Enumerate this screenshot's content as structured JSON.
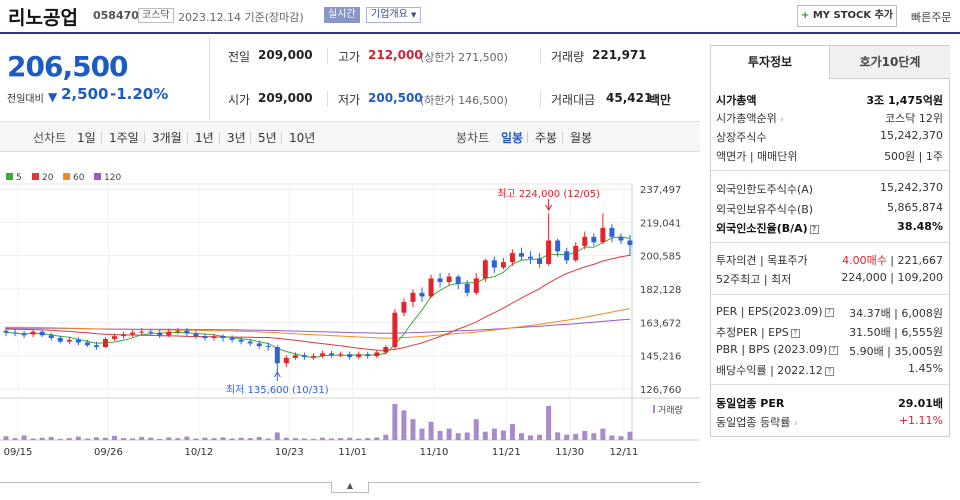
{
  "header": {
    "company": "리노공업",
    "code": "058470",
    "market": "코스닥",
    "date": "2023.12.14  기준(장마감)",
    "realtime": "실시간",
    "overview": "기업개요",
    "mystock": "MY STOCK 추가",
    "quick_order": "빠른주문"
  },
  "price": {
    "current": "206,500",
    "change_label": "전일대비",
    "change_icon": "down-triangle-icon",
    "change": "2,500",
    "change_pct": "-1.20%"
  },
  "summary": {
    "prev_close": {
      "label": "전일",
      "value": "209,000"
    },
    "high": {
      "label": "고가",
      "value": "212,000",
      "sub": "(상한가 271,500)"
    },
    "volume": {
      "label": "거래량",
      "value": "221,971"
    },
    "open": {
      "label": "시가",
      "value": "209,000"
    },
    "low": {
      "label": "저가",
      "value": "200,500",
      "sub": "(하한가 146,500)"
    },
    "amount": {
      "label": "거래대금",
      "value": "45,421",
      "unit": "백만"
    }
  },
  "period_bar": {
    "line_label": "선차트",
    "line_items": [
      "1일",
      "1주일",
      "3개월",
      "1년",
      "3년",
      "5년",
      "10년"
    ],
    "candle_label": "봉차트",
    "candle_items": [
      "일봉",
      "주봉",
      "월봉"
    ],
    "active": "일봉"
  },
  "legend": [
    {
      "label": "5",
      "color": "#3cab36"
    },
    {
      "label": "20",
      "color": "#e03a3a"
    },
    {
      "label": "60",
      "color": "#f08a24"
    },
    {
      "label": "120",
      "color": "#9a59c8"
    }
  ],
  "chart_data": {
    "type": "candlestick",
    "y_ticks": [
      "237,497",
      "219,041",
      "200,585",
      "182,128",
      "163,672",
      "145,216",
      "126,760"
    ],
    "x_labels": [
      "09/15",
      "09/26",
      "10/12",
      "10/23",
      "11/01",
      "11/10",
      "11/21",
      "11/30",
      "12/11"
    ],
    "ylim": [
      126760,
      237497
    ],
    "high_annotation": "최고 224,000 (12/05)",
    "low_annotation": "최저 135,600 (10/31)",
    "volume_label": "거래량",
    "candles": [
      [
        159000,
        158000,
        161000,
        156000
      ],
      [
        158000,
        157500,
        160000,
        156000
      ],
      [
        157500,
        156500,
        159000,
        155000
      ],
      [
        157000,
        158500,
        159500,
        155500
      ],
      [
        158500,
        156500,
        159500,
        155500
      ],
      [
        156500,
        155000,
        158000,
        153500
      ],
      [
        155000,
        153000,
        156500,
        152000
      ],
      [
        153000,
        154000,
        155500,
        151500
      ],
      [
        154000,
        152500,
        155500,
        151000
      ],
      [
        152500,
        151000,
        154000,
        150000
      ],
      [
        151000,
        150000,
        153000,
        148500
      ],
      [
        150000,
        154500,
        155500,
        149500
      ],
      [
        154500,
        156000,
        157500,
        153500
      ],
      [
        156000,
        157000,
        158500,
        154500
      ],
      [
        157000,
        158000,
        159500,
        155500
      ],
      [
        158000,
        158500,
        160500,
        156500
      ],
      [
        158500,
        158000,
        160000,
        156500
      ],
      [
        158000,
        156500,
        159500,
        155000
      ],
      [
        156500,
        158500,
        160000,
        155500
      ],
      [
        158500,
        159000,
        160500,
        157000
      ],
      [
        159000,
        157500,
        160500,
        156000
      ],
      [
        157500,
        156000,
        159000,
        154500
      ],
      [
        156000,
        155000,
        157500,
        153500
      ],
      [
        155000,
        156000,
        157500,
        153500
      ],
      [
        156000,
        155000,
        157000,
        153000
      ],
      [
        155000,
        154000,
        156500,
        152500
      ],
      [
        154000,
        153000,
        155500,
        151500
      ],
      [
        153000,
        152000,
        154500,
        150500
      ],
      [
        152000,
        150500,
        153500,
        149000
      ],
      [
        150500,
        150000,
        152500,
        148000
      ],
      [
        150000,
        141000,
        151000,
        135600
      ],
      [
        141000,
        144000,
        145500,
        139000
      ],
      [
        144000,
        145500,
        147000,
        143000
      ],
      [
        145500,
        144500,
        147000,
        143000
      ],
      [
        144500,
        145000,
        146500,
        143000
      ],
      [
        145000,
        146500,
        148000,
        144000
      ],
      [
        146500,
        145500,
        148000,
        144000
      ],
      [
        145500,
        146000,
        147500,
        144500
      ],
      [
        146000,
        144500,
        147500,
        143000
      ],
      [
        144500,
        146000,
        147500,
        143500
      ],
      [
        146000,
        145000,
        147500,
        143500
      ],
      [
        145000,
        147000,
        148500,
        144000
      ],
      [
        147000,
        150000,
        151000,
        146000
      ],
      [
        150000,
        169000,
        171000,
        149000
      ],
      [
        169000,
        175000,
        177000,
        167000
      ],
      [
        175000,
        180000,
        182000,
        172000
      ],
      [
        180000,
        178000,
        183000,
        175000
      ],
      [
        178000,
        188000,
        190000,
        177000
      ],
      [
        188000,
        186000,
        191000,
        183000
      ],
      [
        186000,
        189000,
        191000,
        184000
      ],
      [
        189000,
        185000,
        190000,
        182000
      ],
      [
        185000,
        180000,
        187000,
        178000
      ],
      [
        180000,
        188000,
        191000,
        179000
      ],
      [
        188000,
        198000,
        199000,
        186000
      ],
      [
        198000,
        194000,
        200000,
        191000
      ],
      [
        194000,
        197000,
        199500,
        193000
      ],
      [
        197000,
        202000,
        204000,
        195000
      ],
      [
        202000,
        200000,
        205000,
        198000
      ],
      [
        200000,
        199000,
        203000,
        196000
      ],
      [
        199000,
        196000,
        202000,
        194000
      ],
      [
        196000,
        209000,
        224000,
        195000
      ],
      [
        209000,
        203000,
        210000,
        200000
      ],
      [
        203000,
        198000,
        205000,
        196000
      ],
      [
        198000,
        206000,
        208000,
        197000
      ],
      [
        206000,
        211000,
        214000,
        204000
      ],
      [
        211000,
        208000,
        213000,
        206000
      ],
      [
        208000,
        216000,
        224000,
        207000
      ],
      [
        216000,
        211000,
        218000,
        208000
      ],
      [
        211000,
        209000,
        213000,
        207000
      ],
      [
        209000,
        206500,
        212000,
        200500
      ]
    ],
    "volumes": [
      10,
      5,
      12,
      4,
      6,
      8,
      3,
      5,
      9,
      4,
      7,
      6,
      11,
      5,
      4,
      8,
      6,
      3,
      7,
      5,
      9,
      4,
      6,
      5,
      7,
      4,
      6,
      5,
      8,
      4,
      20,
      6,
      5,
      4,
      3,
      6,
      4,
      5,
      6,
      4,
      5,
      7,
      14,
      95,
      78,
      55,
      30,
      48,
      24,
      30,
      18,
      20,
      55,
      22,
      30,
      25,
      42,
      18,
      12,
      14,
      90,
      20,
      14,
      16,
      24,
      18,
      30,
      12,
      10,
      22
    ]
  },
  "right_panel": {
    "tabs": [
      "투자정보",
      "호가10단계"
    ],
    "rows1": [
      {
        "l": "시가총액",
        "r": "3조 1,475억원",
        "bold": true
      },
      {
        "l": "시가총액순위",
        "r": "코스닥 12위"
      },
      {
        "l": "상장주식수",
        "r": "15,242,370"
      },
      {
        "l": "액면가 | 매매단위",
        "r": "500원 | 1주"
      }
    ],
    "rows2": [
      {
        "l": "외국인한도주식수(A)",
        "r": "15,242,370"
      },
      {
        "l": "외국인보유주식수(B)",
        "r": "5,865,874"
      },
      {
        "l": "외국인소진율(B/A)",
        "r": "38.48%",
        "bold": true
      }
    ],
    "rows3": [
      {
        "l": "투자의견 | 목표주가",
        "r1": "4.00매수",
        "r2": " | 221,667"
      },
      {
        "l": "52주최고 | 최저",
        "r": "224,000 | 109,200"
      }
    ],
    "rows4": [
      {
        "l": "PER | EPS(2023.09)",
        "r": "34.37배 | 6,008원"
      },
      {
        "l": "추정PER | EPS",
        "r": "31.50배 | 6,555원"
      },
      {
        "l": "PBR | BPS (2023.09)",
        "r": "5.90배 | 35,005원"
      },
      {
        "l": "배당수익률 | 2022.12",
        "r": "1.45%"
      }
    ],
    "rows5": [
      {
        "l": "동일업종 PER",
        "r": "29.01배",
        "bold": true
      },
      {
        "l": "동일업종 등락률",
        "r": "+1.11%",
        "red": true
      }
    ]
  }
}
